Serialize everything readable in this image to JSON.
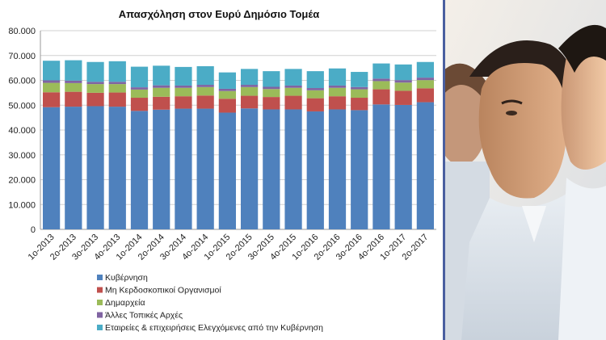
{
  "chart_data": {
    "type": "bar",
    "stacked": true,
    "title": "Απασχόληση στον Ευρύ Δημόσιο Τομέα",
    "xlabel": "",
    "ylabel": "",
    "ylim": [
      0,
      80000
    ],
    "yticks": [
      "0",
      "10.000",
      "20.000",
      "30.000",
      "40.000",
      "50.000",
      "60.000",
      "70.000",
      "80.000"
    ],
    "grid": true,
    "legend_position": "bottom",
    "categories": [
      "1ο-2013",
      "2ο-2013",
      "3ο-2013",
      "4ο-2013",
      "1ο-2014",
      "2ο-2014",
      "3ο-2014",
      "4ο-2014",
      "1ο-2015",
      "2ο-2015",
      "3ο-2015",
      "4ο-2015",
      "1ο-2016",
      "2ο-2016",
      "3ο-2016",
      "4ο-2016",
      "1ο-2017",
      "2ο-2017"
    ],
    "series": [
      {
        "name": "Κυβέρνηση",
        "color": "#4f81bd",
        "values": [
          49200,
          49400,
          49600,
          49400,
          47700,
          48200,
          48600,
          48600,
          47000,
          48700,
          48300,
          48300,
          47500,
          48300,
          48000,
          50300,
          50100,
          51200
        ]
      },
      {
        "name": "Μη Κερδοσκοπικοί Οργανισμοί",
        "color": "#c0504d",
        "values": [
          6000,
          6000,
          5400,
          5700,
          5300,
          5200,
          5000,
          5300,
          5600,
          5100,
          5000,
          5500,
          5300,
          5300,
          5000,
          6100,
          5700,
          5600
        ]
      },
      {
        "name": "Δημαρχεία",
        "color": "#9bbb59",
        "values": [
          3800,
          3500,
          3500,
          3400,
          3300,
          3600,
          3400,
          3400,
          3100,
          3500,
          3200,
          3200,
          3200,
          3400,
          3400,
          3300,
          3300,
          3300
        ]
      },
      {
        "name": "Άλλες Τοπικές Αρχές",
        "color": "#8064a2",
        "values": [
          1000,
          1000,
          900,
          900,
          900,
          1000,
          900,
          900,
          900,
          900,
          900,
          900,
          900,
          900,
          900,
          1000,
          1000,
          1000
        ]
      },
      {
        "name": "Εταιρείες & επιχειρήσεις Ελεγχόμενες από την Κυβέρνηση",
        "color": "#4bacc6",
        "values": [
          7900,
          8200,
          8000,
          8300,
          8300,
          7900,
          7500,
          7500,
          6600,
          6400,
          6300,
          6700,
          6800,
          6900,
          6100,
          6100,
          6300,
          6300
        ]
      }
    ]
  },
  "photo": {
    "description_icon": "business-people-photo"
  }
}
